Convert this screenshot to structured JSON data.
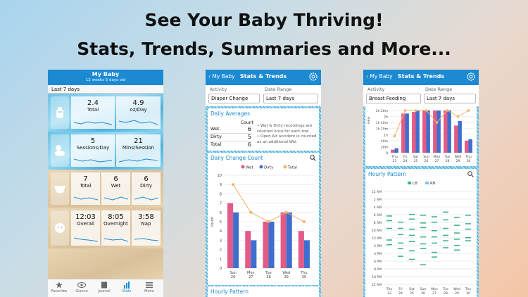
{
  "headline": {
    "line1": "See Your Baby Thriving!",
    "line2": "Stats, Trends, Summaries and More..."
  },
  "phone1": {
    "title": "My Baby",
    "subtitle": "12 weeks 5 days old",
    "range": "Last 7 days",
    "rows": [
      {
        "icon": "bottle-icon",
        "cells": [
          {
            "value": "2.4",
            "label": "Total"
          },
          {
            "value": "4.9",
            "label": "oz/Day"
          }
        ]
      },
      {
        "icon": "sleeping-baby-icon",
        "cells": [
          {
            "value": "5",
            "label": "Sessions/Day"
          },
          {
            "value": "21",
            "label": "Mins/Session"
          }
        ]
      },
      {
        "icon": "diaper-icon",
        "cells": [
          {
            "value": "7",
            "label": "Total"
          },
          {
            "value": "6",
            "label": "Wet"
          },
          {
            "value": "6",
            "label": "Dirty"
          }
        ]
      },
      {
        "icon": "baby-face-icon",
        "cells": [
          {
            "value": "12:03",
            "label": "Overall"
          },
          {
            "value": "8:05",
            "label": "Overnight"
          },
          {
            "value": "3:58",
            "label": "Nap"
          }
        ]
      }
    ],
    "tabs": [
      "Favorites",
      "Glance",
      "Journal",
      "Stats",
      "Menu"
    ]
  },
  "phone2": {
    "back": "My Baby",
    "title": "Stats & Trends",
    "activity_label": "Activity",
    "activity_value": "Diaper Change",
    "range_label": "Date Range",
    "range_value": "Last 7 days",
    "averages_title": "Daily Averages",
    "count_header": "Count",
    "averages": [
      {
        "label": "Wet",
        "value": "6"
      },
      {
        "label": "Dirty",
        "value": "5"
      },
      {
        "label": "Total",
        "value": "6"
      }
    ],
    "note1": "• Wet & Dirty recordings are counted once for each row",
    "note2": "• Open Air accident is counted as an additional Wet",
    "chart_title": "Daily Change Count",
    "hourly_title": "Hourly Pattern"
  },
  "phone3": {
    "back": "My Baby",
    "title": "Stats & Trends",
    "activity_label": "Activity",
    "activity_value": "Breast Feeding",
    "range_label": "Date Range",
    "range_value": "Last 7 days",
    "hourly_title": "Hourly Pattern",
    "ylabel": "mins"
  },
  "chart_data": [
    {
      "type": "bar",
      "title": "Daily Change Count",
      "categories": [
        "Sun 26",
        "Mon 27",
        "Tue 28",
        "Wed 29",
        "Thu 30"
      ],
      "series": [
        {
          "name": "Wet",
          "values": [
            7,
            4,
            5,
            6,
            4
          ]
        },
        {
          "name": "Dirty",
          "values": [
            6,
            3,
            5,
            6,
            3
          ]
        },
        {
          "name": "Total",
          "values": [
            9,
            6,
            5,
            6,
            5
          ]
        }
      ],
      "ylabel": "count",
      "ylim": [
        0,
        10
      ],
      "yticks": [
        "0",
        "1",
        "2",
        "3",
        "4",
        "5",
        "6",
        "7",
        "8",
        "9",
        "10"
      ],
      "colors": {
        "Wet": "#e25b87",
        "Dirty": "#3e6fcf",
        "Total": "#f2b36a"
      }
    },
    {
      "type": "bar",
      "categories": [
        "Thu 23",
        "Fri 24",
        "Sat 25",
        "Sun 26",
        "Mon 27",
        "Tue 28",
        "Wed 29",
        "Thu 30"
      ],
      "series": [
        {
          "name": "LB",
          "values": [
            10,
            130,
            135,
            145,
            140,
            145,
            90,
            40
          ]
        },
        {
          "name": "RB",
          "values": [
            15,
            130,
            150,
            140,
            140,
            145,
            105,
            45
          ]
        }
      ],
      "ylabel": "mins",
      "yticks": [
        "0",
        "20m",
        "40m",
        "1h",
        "1h 20m",
        "1h 40m",
        "2h",
        "2h 20m"
      ],
      "line_values": [
        55,
        185,
        165,
        140,
        100,
        185,
        120,
        150
      ]
    },
    {
      "type": "scatter",
      "title": "Hourly Pattern",
      "legend": [
        "LB",
        "RB"
      ],
      "yticks": [
        "12 AM",
        "2 AM",
        "4 AM",
        "6 AM",
        "8 AM",
        "10 AM",
        "12 PM",
        "2 PM",
        "4 PM",
        "6 PM",
        "8 PM",
        "10 PM",
        "12 AM"
      ],
      "xticks": [
        "Thu 23",
        "Fri 24",
        "Sat 25",
        "Sun 26",
        "Mon 27",
        "Tue 28",
        "Wed 29",
        "Thu 30"
      ]
    }
  ]
}
